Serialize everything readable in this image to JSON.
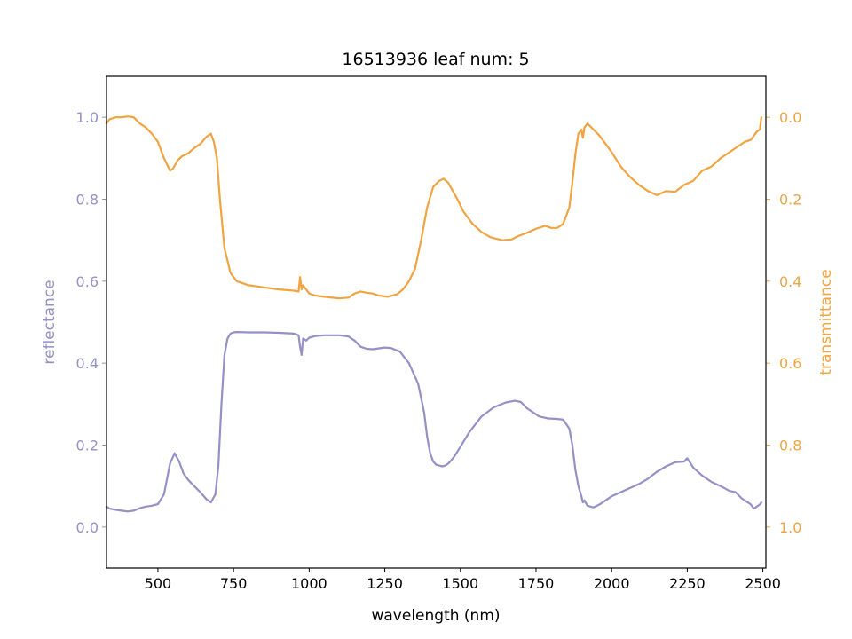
{
  "chart_data": {
    "type": "line",
    "title": "16513936 leaf num: 5",
    "xlabel": "wavelength (nm)",
    "ylabel_left": "reflectance",
    "ylabel_right": "transmittance",
    "xlim": [
      330,
      2510
    ],
    "ylim_left": [
      -0.1,
      1.1
    ],
    "ylim_right": [
      1.1,
      -0.1
    ],
    "right_axis_inverted": true,
    "x_ticks": [
      500,
      750,
      1000,
      1250,
      1500,
      1750,
      2000,
      2250,
      2500
    ],
    "y_ticks_left": [
      0.0,
      0.2,
      0.4,
      0.6,
      0.8,
      1.0
    ],
    "y_ticks_right": [
      0.0,
      0.2,
      0.4,
      0.6,
      0.8,
      1.0
    ],
    "y_tick_labels_left": [
      "0.0",
      "0.2",
      "0.4",
      "0.6",
      "0.8",
      "1.0"
    ],
    "y_tick_labels_right": [
      "0.0",
      "0.2",
      "0.4",
      "0.6",
      "0.8",
      "1.0"
    ],
    "colors": {
      "reflectance": "#9590c6",
      "transmittance": "#f0a440"
    },
    "grid": false,
    "series": [
      {
        "axis": "left",
        "color": "#9590c6",
        "x": [
          330,
          340,
          360,
          380,
          400,
          420,
          440,
          460,
          480,
          500,
          520,
          540,
          555,
          570,
          585,
          600,
          620,
          640,
          660,
          675,
          690,
          700,
          710,
          720,
          730,
          740,
          750,
          760,
          800,
          850,
          900,
          950,
          965,
          970,
          975,
          980,
          990,
          1000,
          1020,
          1050,
          1100,
          1130,
          1150,
          1170,
          1190,
          1210,
          1250,
          1270,
          1300,
          1330,
          1360,
          1380,
          1390,
          1400,
          1410,
          1420,
          1430,
          1440,
          1450,
          1460,
          1470,
          1480,
          1500,
          1530,
          1570,
          1610,
          1650,
          1680,
          1700,
          1720,
          1740,
          1760,
          1790,
          1820,
          1840,
          1860,
          1870,
          1880,
          1890,
          1900,
          1905,
          1910,
          1920,
          1940,
          1960,
          1980,
          2000,
          2030,
          2060,
          2090,
          2120,
          2150,
          2180,
          2210,
          2240,
          2250,
          2270,
          2300,
          2330,
          2360,
          2390,
          2410,
          2430,
          2450,
          2460,
          2470,
          2480,
          2490,
          2495
        ],
        "y": [
          0.05,
          0.045,
          0.042,
          0.04,
          0.038,
          0.04,
          0.046,
          0.05,
          0.052,
          0.056,
          0.08,
          0.155,
          0.18,
          0.16,
          0.13,
          0.115,
          0.1,
          0.085,
          0.068,
          0.06,
          0.08,
          0.15,
          0.3,
          0.42,
          0.46,
          0.472,
          0.475,
          0.476,
          0.475,
          0.475,
          0.474,
          0.472,
          0.468,
          0.44,
          0.42,
          0.46,
          0.455,
          0.462,
          0.466,
          0.468,
          0.468,
          0.465,
          0.455,
          0.44,
          0.435,
          0.434,
          0.438,
          0.437,
          0.428,
          0.4,
          0.35,
          0.28,
          0.22,
          0.18,
          0.16,
          0.152,
          0.15,
          0.148,
          0.15,
          0.155,
          0.163,
          0.172,
          0.196,
          0.232,
          0.27,
          0.292,
          0.304,
          0.308,
          0.305,
          0.29,
          0.28,
          0.27,
          0.265,
          0.264,
          0.262,
          0.24,
          0.2,
          0.14,
          0.1,
          0.075,
          0.06,
          0.065,
          0.052,
          0.048,
          0.055,
          0.065,
          0.075,
          0.085,
          0.095,
          0.105,
          0.118,
          0.135,
          0.148,
          0.158,
          0.16,
          0.168,
          0.145,
          0.125,
          0.11,
          0.1,
          0.088,
          0.085,
          0.07,
          0.06,
          0.055,
          0.045,
          0.05,
          0.055,
          0.06
        ]
      },
      {
        "axis": "right",
        "color": "#f0a440",
        "x": [
          330,
          340,
          360,
          380,
          400,
          420,
          440,
          460,
          480,
          500,
          520,
          540,
          550,
          565,
          580,
          600,
          620,
          640,
          660,
          675,
          685,
          695,
          705,
          720,
          740,
          760,
          800,
          850,
          900,
          950,
          965,
          970,
          975,
          980,
          990,
          1000,
          1020,
          1050,
          1100,
          1130,
          1150,
          1170,
          1190,
          1210,
          1230,
          1260,
          1290,
          1310,
          1330,
          1350,
          1370,
          1390,
          1410,
          1430,
          1445,
          1460,
          1475,
          1490,
          1510,
          1540,
          1570,
          1600,
          1640,
          1670,
          1690,
          1720,
          1750,
          1780,
          1800,
          1820,
          1840,
          1860,
          1870,
          1880,
          1890,
          1900,
          1905,
          1910,
          1920,
          1940,
          1960,
          1980,
          2000,
          2030,
          2060,
          2090,
          2120,
          2150,
          2180,
          2210,
          2240,
          2270,
          2300,
          2330,
          2360,
          2390,
          2420,
          2440,
          2460,
          2480,
          2490,
          2495
        ],
        "y": [
          0.015,
          0.005,
          0.0,
          0.0,
          -0.002,
          0.0,
          0.015,
          0.025,
          0.04,
          0.06,
          0.1,
          0.13,
          0.125,
          0.105,
          0.095,
          0.088,
          0.075,
          0.065,
          0.048,
          0.04,
          0.06,
          0.1,
          0.2,
          0.32,
          0.38,
          0.4,
          0.41,
          0.415,
          0.42,
          0.423,
          0.425,
          0.39,
          0.42,
          0.41,
          0.42,
          0.43,
          0.435,
          0.438,
          0.442,
          0.44,
          0.43,
          0.425,
          0.428,
          0.43,
          0.435,
          0.438,
          0.432,
          0.42,
          0.4,
          0.37,
          0.3,
          0.22,
          0.17,
          0.155,
          0.15,
          0.16,
          0.18,
          0.2,
          0.23,
          0.26,
          0.28,
          0.293,
          0.3,
          0.298,
          0.29,
          0.282,
          0.272,
          0.265,
          0.27,
          0.27,
          0.26,
          0.22,
          0.16,
          0.09,
          0.04,
          0.03,
          0.05,
          0.025,
          0.015,
          0.03,
          0.045,
          0.065,
          0.085,
          0.12,
          0.145,
          0.165,
          0.18,
          0.19,
          0.18,
          0.182,
          0.165,
          0.155,
          0.13,
          0.12,
          0.1,
          0.085,
          0.07,
          0.06,
          0.055,
          0.035,
          0.03,
          0.0
        ]
      }
    ]
  }
}
